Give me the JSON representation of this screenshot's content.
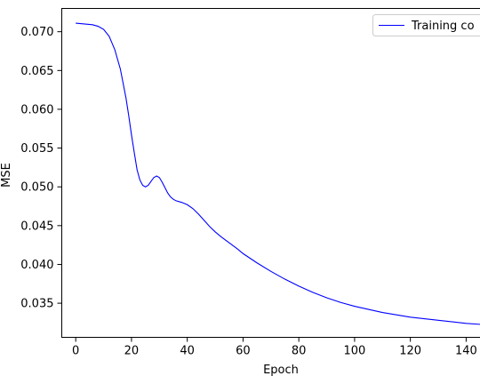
{
  "chart_data": {
    "type": "line",
    "title": "",
    "xlabel": "Epoch",
    "ylabel": "MSE",
    "xlim": [
      -5,
      148
    ],
    "ylim": [
      0.0306,
      0.073
    ],
    "xticks": [
      "0",
      "20",
      "40",
      "60",
      "80",
      "100",
      "120",
      "140"
    ],
    "yticks": [
      "0.035",
      "0.040",
      "0.045",
      "0.050",
      "0.055",
      "0.060",
      "0.065",
      "0.070"
    ],
    "grid": false,
    "legend": {
      "placement": "top-right",
      "entries": [
        "Training co"
      ]
    },
    "colors": {
      "series": "#0000ff"
    },
    "series": [
      {
        "name": "Training co",
        "x": [
          0,
          3,
          6,
          8,
          10,
          12,
          14,
          16,
          18,
          19,
          20,
          21,
          22,
          23,
          24,
          25,
          26,
          27,
          28,
          29,
          30,
          31,
          32,
          33,
          34,
          35,
          36,
          38,
          40,
          42,
          44,
          46,
          48,
          50,
          52,
          55,
          58,
          60,
          65,
          70,
          75,
          80,
          85,
          90,
          95,
          100,
          110,
          120,
          130,
          140,
          148
        ],
        "y": [
          0.0711,
          0.071,
          0.0709,
          0.0707,
          0.0703,
          0.0694,
          0.0677,
          0.0652,
          0.0615,
          0.0592,
          0.0567,
          0.0544,
          0.0522,
          0.0509,
          0.0502,
          0.05,
          0.0502,
          0.0507,
          0.0512,
          0.0514,
          0.0512,
          0.0506,
          0.0499,
          0.0492,
          0.0487,
          0.0484,
          0.0482,
          0.048,
          0.0477,
          0.0472,
          0.0465,
          0.0457,
          0.0449,
          0.0442,
          0.0436,
          0.0428,
          0.042,
          0.0414,
          0.0402,
          0.0391,
          0.0381,
          0.0372,
          0.0364,
          0.0357,
          0.0351,
          0.0346,
          0.0338,
          0.0332,
          0.0328,
          0.0324,
          0.0322
        ]
      }
    ]
  }
}
